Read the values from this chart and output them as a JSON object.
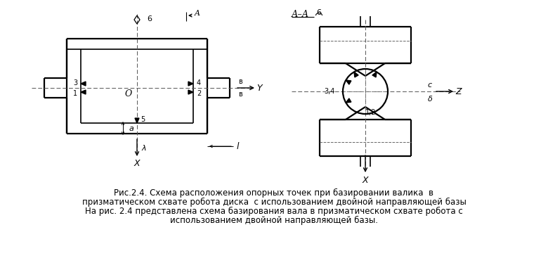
{
  "bg_color": "#ffffff",
  "fig_width": 7.8,
  "fig_height": 3.74,
  "caption_line1": "Рис.2.4. Схема расположения опорных точек при базировании валика  в",
  "caption_line2": "призматическом схвате робота диска  с использованием двойной направляющей базы",
  "caption_line3": "На рис. 2.4 представлена схема базирования вала в призматическом схвате робота с",
  "caption_line4": "использованием двойной направляющей базы."
}
